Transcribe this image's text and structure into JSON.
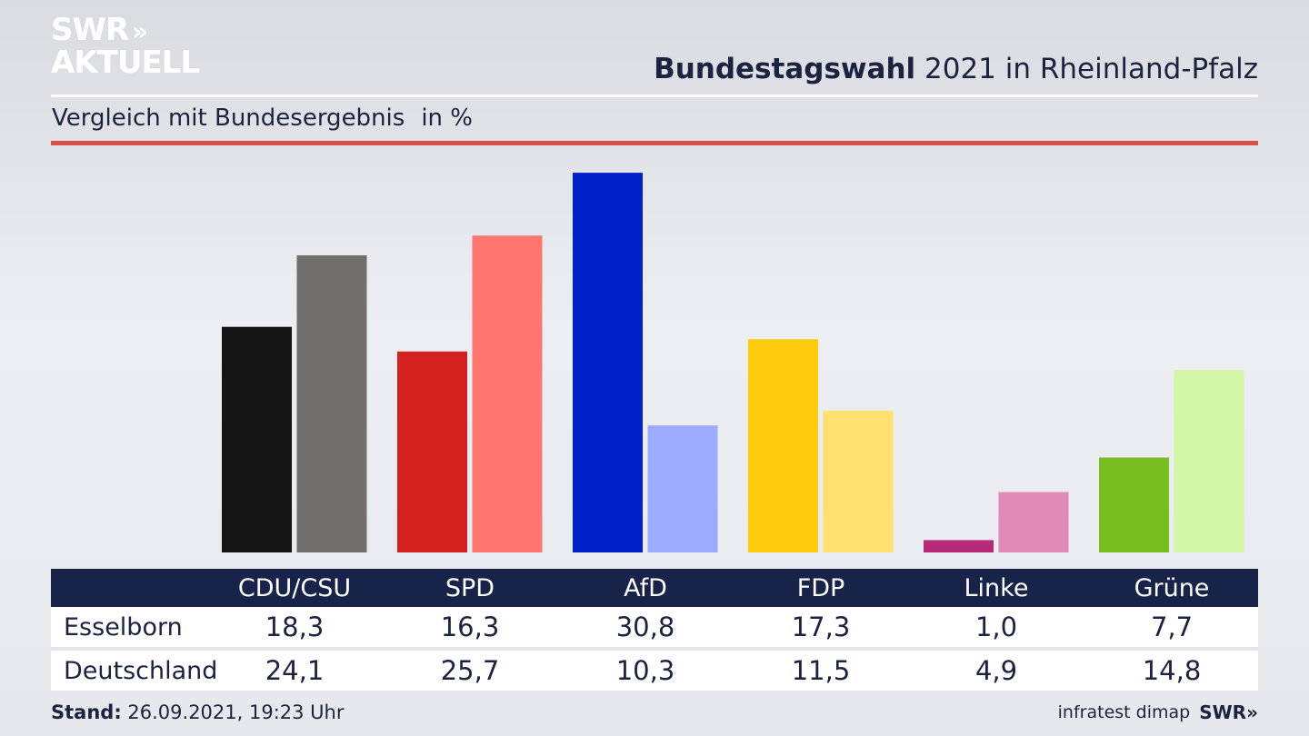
{
  "brand": {
    "logo_line1": "SWR",
    "logo_line2": "AKTUELL",
    "logo_arrows": "»"
  },
  "header": {
    "title_bold": "Bundestagswahl",
    "title_rest": " 2021 in Rheinland-Pfalz",
    "subtitle": "Vergleich mit Bundesergebnis",
    "subtitle_unit": "in %"
  },
  "table": {
    "rows": [
      {
        "label": "Esselborn",
        "values": [
          "18,3",
          "16,3",
          "30,8",
          "17,3",
          "1,0",
          "7,7"
        ]
      },
      {
        "label": "Deutschland",
        "values": [
          "24,1",
          "25,7",
          "10,3",
          "11,5",
          "4,9",
          "14,8"
        ]
      }
    ]
  },
  "footer": {
    "stand_label": "Stand:",
    "stand_value": " 26.09.2021, 19:23 Uhr",
    "source": "infratest dimap",
    "brand": "SWR»"
  },
  "colors": {
    "header_bar": "#172349",
    "accent_rule": "#d9504a"
  },
  "chart_data": {
    "type": "bar",
    "categories": [
      "CDU/CSU",
      "SPD",
      "AfD",
      "FDP",
      "Linke",
      "Grüne"
    ],
    "series": [
      {
        "name": "Esselborn",
        "values": [
          18.3,
          16.3,
          30.8,
          17.3,
          1.0,
          7.7
        ],
        "colors": [
          "#141414",
          "#d4201e",
          "#0021c8",
          "#ffcc0d",
          "#b42c78",
          "#78be20"
        ]
      },
      {
        "name": "Deutschland",
        "values": [
          24.1,
          25.7,
          10.3,
          11.5,
          4.9,
          14.8
        ],
        "colors": [
          "#706f6d",
          "#ff7570",
          "#9dabff",
          "#ffe071",
          "#e08ab7",
          "#d3f7a7"
        ]
      }
    ],
    "ylim": [
      0,
      31
    ]
  }
}
